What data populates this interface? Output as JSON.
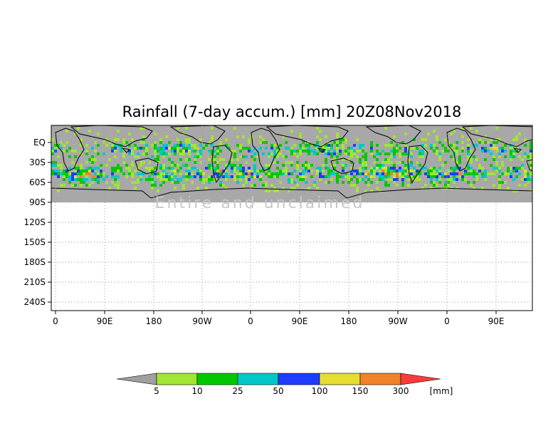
{
  "title": "Rainfall (7-day accum.) [mm] 20Z08Nov2018",
  "watermark": "Entire and unclaimed",
  "map": {
    "lat_ticks": [
      "EQ",
      "30S",
      "60S",
      "90S",
      "120S",
      "150S",
      "180S",
      "210S",
      "240S"
    ],
    "lon_ticks": [
      "0",
      "90E",
      "180",
      "90W",
      "0",
      "90E",
      "180",
      "90W",
      "0",
      "90E"
    ],
    "land_color": "#a8a8a8",
    "no_data_color": "#b4b4b4",
    "grid": "dotted"
  },
  "colorbar": {
    "unit": "[mm]",
    "thresholds": [
      "5",
      "10",
      "25",
      "50",
      "100",
      "150",
      "300"
    ],
    "colors": [
      "#a0a0a0",
      "#a0e632",
      "#00c800",
      "#00c8c8",
      "#1e3cff",
      "#e6dc32",
      "#f08228",
      "#fa3c3c"
    ]
  }
}
